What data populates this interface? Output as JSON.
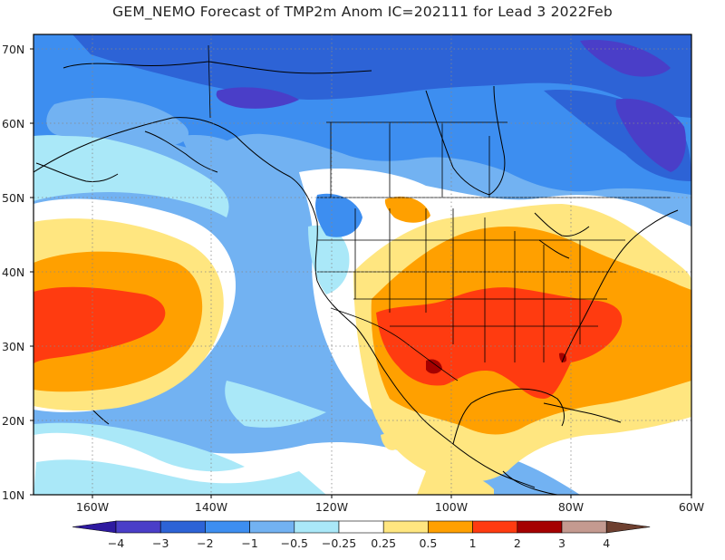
{
  "title": "GEM_NEMO Forecast of TMP2m Anom IC=202111 for Lead 3 2022Feb",
  "lat_ticks": [
    "70N",
    "60N",
    "50N",
    "40N",
    "30N",
    "20N",
    "10N"
  ],
  "lon_ticks": [
    "160W",
    "140W",
    "120W",
    "100W",
    "80W",
    "60W"
  ],
  "colorbar": {
    "labels": [
      "-4",
      "-3",
      "-2",
      "-1",
      "-0.5",
      "-0.25",
      "0.25",
      "0.5",
      "1",
      "2",
      "3",
      "4"
    ],
    "colors": [
      "#2e1aa0",
      "#4a3ec8",
      "#2d63d6",
      "#3d8ef0",
      "#72b2f2",
      "#aae8f8",
      "#ffffff",
      "#ffe680",
      "#ffa000",
      "#ff3b10",
      "#a50000",
      "#c49a90",
      "#6e4030"
    ]
  },
  "palette": {
    "n4": "#2e1aa0",
    "n3": "#4a3ec8",
    "n2": "#2d63d6",
    "n1": "#3d8ef0",
    "n05": "#72b2f2",
    "n025": "#aae8f8",
    "zero": "#ffffff",
    "p025": "#ffe680",
    "p05": "#ffa000",
    "p1": "#ff3b10",
    "p2": "#a50000"
  }
}
